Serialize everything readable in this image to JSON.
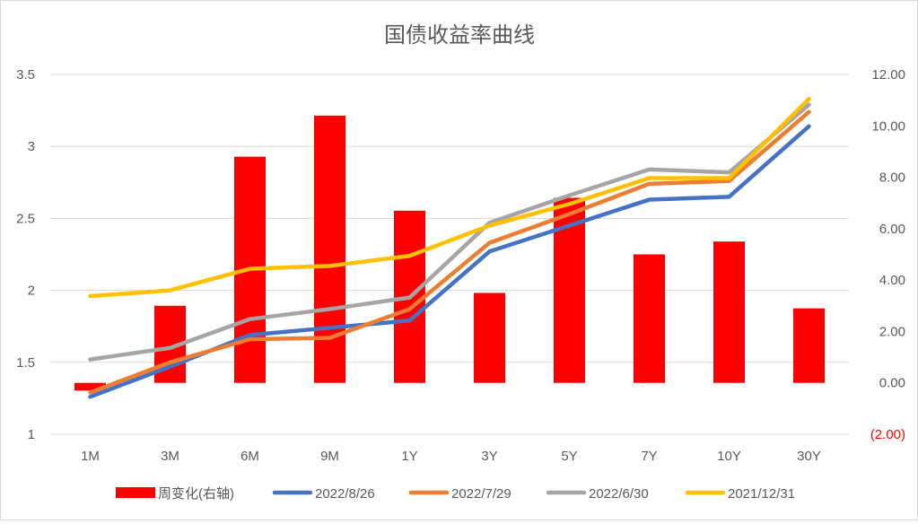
{
  "chart_data": {
    "type": "bar+line",
    "title": "国债收益率曲线",
    "categories": [
      "1M",
      "3M",
      "6M",
      "9M",
      "1Y",
      "3Y",
      "5Y",
      "7Y",
      "10Y",
      "30Y"
    ],
    "left_axis": {
      "ylim": [
        1,
        3.5
      ],
      "ticks": [
        "1",
        "1.5",
        "2",
        "2.5",
        "3",
        "3.5"
      ]
    },
    "right_axis": {
      "ylim": [
        -2,
        12
      ],
      "ticks": [
        "(2.00)",
        "0.00",
        "2.00",
        "4.00",
        "6.00",
        "8.00",
        "10.00",
        "12.00"
      ],
      "negative_color": "#ff0000"
    },
    "grid": true,
    "legend": "bottom",
    "bar_series": {
      "name": "周变化(右轴)",
      "color": "#ff0000",
      "axis": "right",
      "values": [
        -0.3,
        3.0,
        8.8,
        10.4,
        6.7,
        3.5,
        7.2,
        5.0,
        5.5,
        2.9
      ]
    },
    "series": [
      {
        "name": "2022/8/26",
        "color": "#4472c4",
        "axis": "left",
        "values": [
          1.26,
          1.47,
          1.69,
          1.74,
          1.79,
          2.27,
          2.45,
          2.63,
          2.65,
          3.14
        ]
      },
      {
        "name": "2022/7/29",
        "color": "#ed7d31",
        "axis": "left",
        "values": [
          1.29,
          1.5,
          1.66,
          1.67,
          1.87,
          2.33,
          2.53,
          2.74,
          2.76,
          3.24
        ]
      },
      {
        "name": "2022/6/30",
        "color": "#a5a5a5",
        "axis": "left",
        "values": [
          1.52,
          1.6,
          1.8,
          1.87,
          1.95,
          2.47,
          2.66,
          2.84,
          2.82,
          3.29
        ]
      },
      {
        "name": "2021/12/31",
        "color": "#ffc000",
        "axis": "left",
        "values": [
          1.96,
          2.0,
          2.15,
          2.17,
          2.24,
          2.45,
          2.6,
          2.78,
          2.78,
          3.33
        ]
      }
    ]
  }
}
